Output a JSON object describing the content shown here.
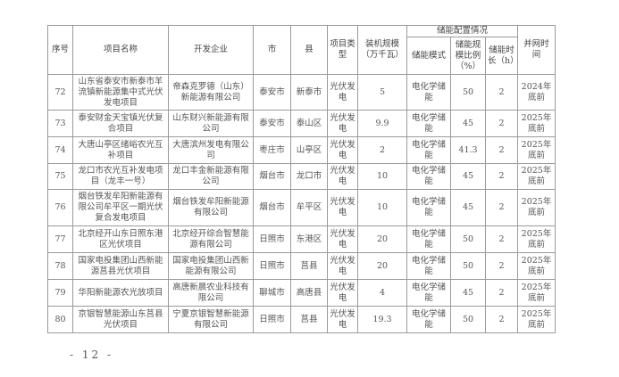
{
  "headers": {
    "seq": "序号",
    "name": "项目名称",
    "developer": "开发企业",
    "city": "市",
    "county": "县",
    "type": "项目类型",
    "capacity": "装机规模（万千瓦）",
    "storage_group": "储能配置情况",
    "storage_mode": "储能模式",
    "storage_ratio": "储能规模比例（%）",
    "storage_duration": "储能时长（h）",
    "grid_time": "并网时间"
  },
  "rows": [
    {
      "seq": "72",
      "name": "山东省泰安市新泰市羊流镇新能源集中式光伏发电项目",
      "developer": "帝森克罗德（山东）新能源有限公司",
      "city": "泰安市",
      "county": "新泰市",
      "type": "光伏发电",
      "capacity": "5",
      "mode": "电化学储能",
      "ratio": "50",
      "duration": "2",
      "grid": "2024年底前"
    },
    {
      "seq": "73",
      "name": "泰安财金天宝镇光伏复合项目",
      "developer": "山东财兴新能源有限公司",
      "city": "泰安市",
      "county": "泰山区",
      "type": "光伏发电",
      "capacity": "9.9",
      "mode": "电化学储能",
      "ratio": "45",
      "duration": "2",
      "grid": "2025年底前"
    },
    {
      "seq": "74",
      "name": "大唐山亭区绪峪农光互补项目",
      "developer": "大唐滨州发电有限公司",
      "city": "枣庄市",
      "county": "山亭区",
      "type": "光伏发电",
      "capacity": "2",
      "mode": "电化学储能",
      "ratio": "41.3",
      "duration": "2",
      "grid": "2025年底前"
    },
    {
      "seq": "75",
      "name": "龙口市农光互补发电项目（龙丰一号）",
      "developer": "龙口丰金新能源有限公司",
      "city": "烟台市",
      "county": "龙口市",
      "type": "光伏发电",
      "capacity": "10",
      "mode": "电化学储能",
      "ratio": "45",
      "duration": "2",
      "grid": "2025年底前"
    },
    {
      "seq": "76",
      "name": "烟台铁发牟阳新能源有限公司牟平区一期光伏复合发电项目",
      "developer": "烟台铁发牟阳新能源有限公司",
      "city": "烟台市",
      "county": "牟平区",
      "type": "光伏发电",
      "capacity": "10",
      "mode": "电化学储能",
      "ratio": "45",
      "duration": "2",
      "grid": "2025年底前"
    },
    {
      "seq": "77",
      "name": "北京经开山东日照东港区光伏项目",
      "developer": "北京经开综合智慧能源有限公司",
      "city": "日照市",
      "county": "东港区",
      "type": "光伏发电",
      "capacity": "20",
      "mode": "电化学储能",
      "ratio": "50",
      "duration": "2",
      "grid": "2025年底前"
    },
    {
      "seq": "78",
      "name": "国家电投集团山西新能源莒县光伏项目",
      "developer": "国家电投集团山西新能源有限公司",
      "city": "日照市",
      "county": "莒县",
      "type": "光伏发电",
      "capacity": "20",
      "mode": "电化学储能",
      "ratio": "50",
      "duration": "2",
      "grid": "2025年底前"
    },
    {
      "seq": "79",
      "name": "华阳新能源农光放项目",
      "developer": "高唐新晨农业科技有限公司",
      "city": "聊城市",
      "county": "高唐县",
      "type": "光伏发电",
      "capacity": "4",
      "mode": "电化学储能",
      "ratio": "45",
      "duration": "2",
      "grid": "2025年底前"
    },
    {
      "seq": "80",
      "name": "京银智慧能源山东莒县光伏项目",
      "developer": "宁夏京银智慧新能源有限公司",
      "city": "日照市",
      "county": "莒县",
      "type": "光伏发电",
      "capacity": "19.3",
      "mode": "电化学储能",
      "ratio": "50",
      "duration": "2",
      "grid": "2025年底前"
    }
  ],
  "page_number": "- 12 -"
}
